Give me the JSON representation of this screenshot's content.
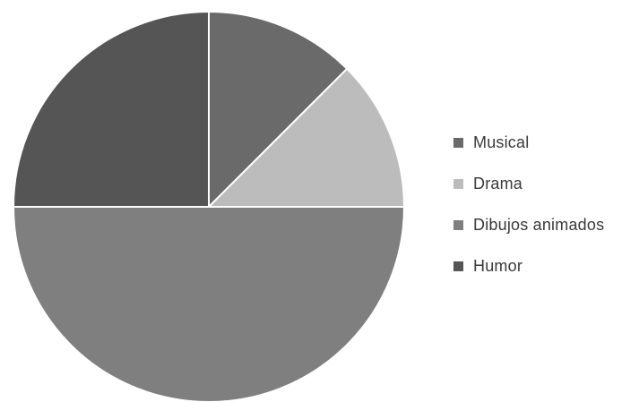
{
  "chart_data": {
    "type": "pie",
    "title": "",
    "legend_position": "right",
    "start_angle_deg": 0,
    "direction": "clockwise",
    "slices": [
      {
        "label": "Musical",
        "value": 12.5,
        "color": "#6a6a6a"
      },
      {
        "label": "Drama",
        "value": 12.5,
        "color": "#bcbcbc"
      },
      {
        "label": "Dibujos animados",
        "value": 50,
        "color": "#7f7f7f"
      },
      {
        "label": "Humor",
        "value": 25,
        "color": "#555555"
      }
    ]
  }
}
